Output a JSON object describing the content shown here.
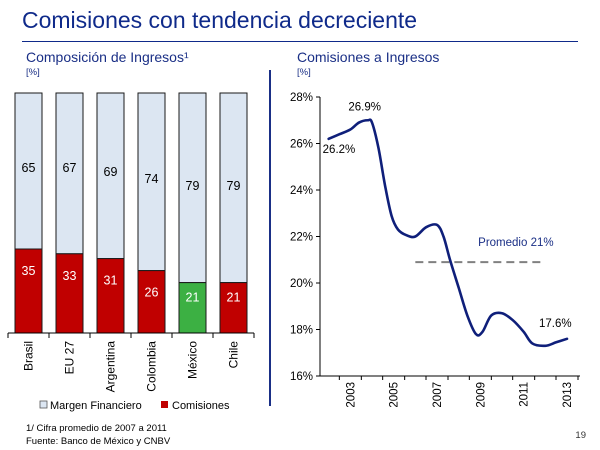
{
  "header": {
    "title": "Comisiones con tendencia decreciente"
  },
  "left_panel": {
    "title": "Composición de Ingresos¹",
    "unit": "[%]"
  },
  "right_panel": {
    "title": "Comisiones a Ingresos",
    "unit": "[%]"
  },
  "footer": {
    "note": "1/ Cifra promedio de 2007 a 2011",
    "source": "Fuente: Banco de México y CNBV",
    "page_number": "19"
  },
  "colors": {
    "margen": "#dce6f2",
    "comisiones": "#c00000",
    "mexico_highlight": "#3cb043",
    "line": "#0f1f7a",
    "average": "#808080"
  },
  "chart_data": [
    {
      "type": "bar",
      "stacked": true,
      "categories": [
        "Brasil",
        "EU 27",
        "Argentina",
        "Colombia",
        "México",
        "Chile"
      ],
      "series": [
        {
          "name": "Comisiones",
          "values": [
            35,
            33,
            31,
            26,
            21,
            21
          ]
        },
        {
          "name": "Margen Financiero",
          "values": [
            65,
            67,
            69,
            74,
            79,
            79
          ]
        }
      ],
      "highlight_category": "México",
      "ylim": [
        0,
        100
      ],
      "legend": {
        "position": "bottom"
      }
    },
    {
      "type": "line",
      "series": [
        {
          "x": [
            2002.0,
            2002.5,
            2003.0,
            2003.4,
            2003.8,
            2004.0,
            2004.3,
            2004.6,
            2004.9,
            2005.2,
            2005.6,
            2006.0,
            2006.5,
            2007.0,
            2007.3,
            2007.6,
            2008.0,
            2008.4,
            2008.8,
            2009.1,
            2009.5,
            2010.0,
            2010.5,
            2011.0,
            2011.4,
            2012.0,
            2012.5,
            2013.0
          ],
          "values": [
            26.2,
            26.4,
            26.6,
            26.9,
            27.0,
            26.9,
            25.8,
            24.2,
            22.9,
            22.3,
            22.05,
            22.0,
            22.4,
            22.5,
            22.0,
            21.0,
            19.8,
            18.6,
            17.8,
            17.9,
            18.6,
            18.7,
            18.4,
            17.9,
            17.4,
            17.3,
            17.45,
            17.6
          ]
        }
      ],
      "point_labels": [
        {
          "x": 2002.0,
          "y": 26.2,
          "text": "26.2%"
        },
        {
          "x": 2003.6,
          "y": 26.9,
          "text": "26.9%"
        },
        {
          "x": 2013.0,
          "y": 17.6,
          "text": "17.6%"
        }
      ],
      "average": {
        "label": "Promedio 21%",
        "value": 20.9,
        "x_range": [
          2006.0,
          2012.0
        ]
      },
      "y_ticks": [
        "16%",
        "18%",
        "20%",
        "22%",
        "24%",
        "26%",
        "28%"
      ],
      "x_ticks": [
        "2003",
        "2005",
        "2007",
        "2009",
        "2011",
        "2013"
      ],
      "ylim": [
        16,
        28
      ],
      "xlim": [
        2001.6,
        2013.6
      ]
    }
  ]
}
